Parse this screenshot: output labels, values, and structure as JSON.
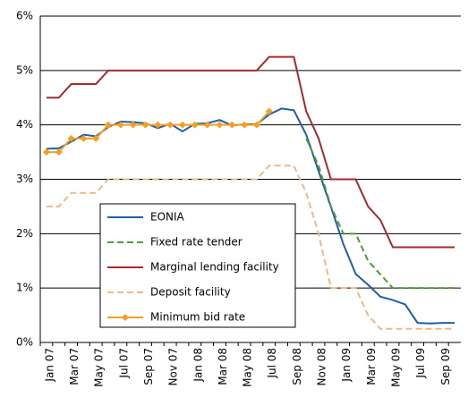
{
  "chart_data": {
    "type": "line",
    "categories": [
      "Jan 07",
      null,
      "Mar 07",
      null,
      "May 07",
      null,
      "Jul 07",
      null,
      "Sep 07",
      null,
      "Nov 07",
      null,
      "Jan 08",
      null,
      "Mar 08",
      null,
      "May 08",
      null,
      "Jul 08",
      null,
      "Sep 08",
      null,
      "Nov 08",
      null,
      "Jan 09",
      null,
      "Mar 09",
      null,
      "May 09",
      null,
      "Jul 09",
      null,
      "Sep 09",
      null
    ],
    "ylim": [
      0,
      6
    ],
    "yticks": [
      {
        "value": 0,
        "label": "0%"
      },
      {
        "value": 1,
        "label": "1%"
      },
      {
        "value": 2,
        "label": "2%"
      },
      {
        "value": 3,
        "label": "3%"
      },
      {
        "value": 4,
        "label": "4%"
      },
      {
        "value": 5,
        "label": "5%"
      },
      {
        "value": 6,
        "label": "6%"
      }
    ],
    "grid": true,
    "series": [
      {
        "name": "EONIA",
        "color": "#1f5fa8",
        "style": "solid",
        "values": [
          3.56,
          3.57,
          3.69,
          3.82,
          3.79,
          3.96,
          4.06,
          4.05,
          4.03,
          3.94,
          4.02,
          3.88,
          4.02,
          4.03,
          4.09,
          3.99,
          4.01,
          4.01,
          4.19,
          4.3,
          4.27,
          3.82,
          3.15,
          2.49,
          1.81,
          1.26,
          1.06,
          0.84,
          0.78,
          0.7,
          0.36,
          0.35,
          0.36,
          0.36
        ]
      },
      {
        "name": "Fixed rate tender",
        "color": "#4e9a3a",
        "style": "dashed",
        "values": [
          null,
          null,
          null,
          null,
          null,
          null,
          null,
          null,
          null,
          null,
          null,
          null,
          null,
          null,
          null,
          null,
          null,
          null,
          null,
          null,
          null,
          3.75,
          3.25,
          2.5,
          2.0,
          2.0,
          1.5,
          1.25,
          1.0,
          1.0,
          1.0,
          1.0,
          1.0,
          1.0
        ]
      },
      {
        "name": "Marginal lending facility",
        "color": "#a52a2a",
        "style": "solid",
        "values": [
          4.5,
          4.5,
          4.75,
          4.75,
          4.75,
          5.0,
          5.0,
          5.0,
          5.0,
          5.0,
          5.0,
          5.0,
          5.0,
          5.0,
          5.0,
          5.0,
          5.0,
          5.0,
          5.25,
          5.25,
          5.25,
          4.25,
          3.75,
          3.0,
          3.0,
          3.0,
          2.5,
          2.25,
          1.75,
          1.75,
          1.75,
          1.75,
          1.75,
          1.75
        ]
      },
      {
        "name": "Deposit facility",
        "color": "#f0b888",
        "style": "dashed",
        "values": [
          2.5,
          2.5,
          2.75,
          2.75,
          2.75,
          3.0,
          3.0,
          3.0,
          3.0,
          3.0,
          3.0,
          3.0,
          3.0,
          3.0,
          3.0,
          3.0,
          3.0,
          3.0,
          3.25,
          3.25,
          3.25,
          2.75,
          2.0,
          1.0,
          1.0,
          1.0,
          0.5,
          0.25,
          0.25,
          0.25,
          0.25,
          0.25,
          0.25,
          0.25
        ]
      },
      {
        "name": "Minimum bid rate",
        "color": "#f5a020",
        "style": "markers",
        "values": [
          3.5,
          3.5,
          3.75,
          3.75,
          3.75,
          4.0,
          4.0,
          4.0,
          4.0,
          4.0,
          4.0,
          4.0,
          4.0,
          4.0,
          4.0,
          4.0,
          4.0,
          4.0,
          4.25,
          null,
          null,
          null,
          null,
          null,
          null,
          null,
          null,
          null,
          null,
          null,
          null,
          null,
          null,
          null
        ]
      }
    ]
  }
}
